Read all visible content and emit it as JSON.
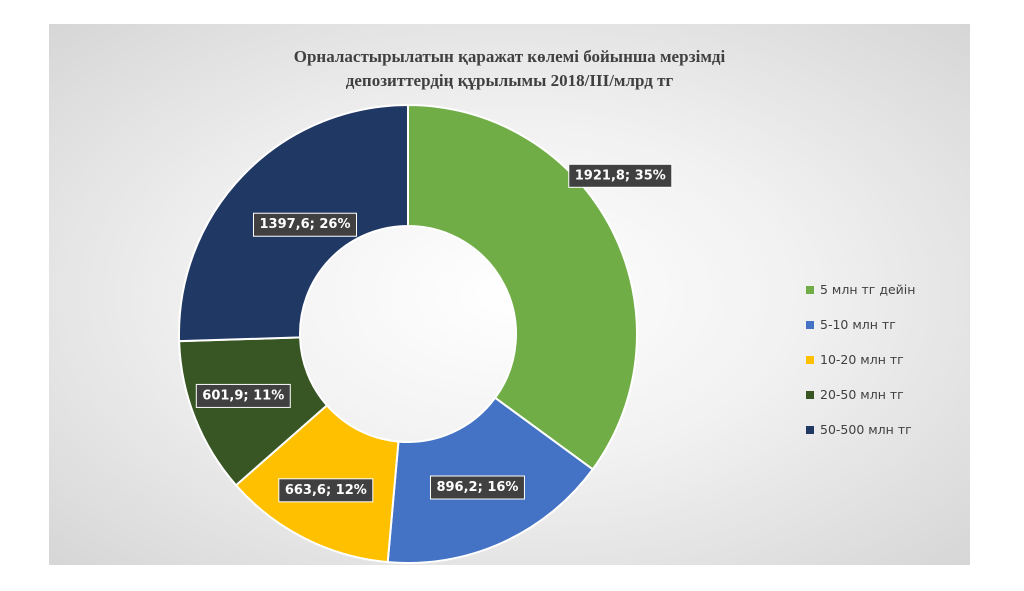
{
  "chart_data": {
    "type": "pie",
    "variant": "doughnut",
    "title": "Орналастырылатын қаражат көлемі бойынша мерзімді депозиттердің құрылымы 2018/III/млрд тг",
    "title_lines": [
      "Орналастырылатын қаражат көлемі бойынша мерзімді",
      "депозиттердің құрылымы 2018/III/млрд тг"
    ],
    "categories": [
      "5 млн тг дейін",
      "5-10 млн тг",
      "10-20 млн тг",
      "20-50 млн тг",
      "50-500 млн тг"
    ],
    "values": [
      1921.8,
      896.2,
      663.6,
      601.9,
      1397.6
    ],
    "percents": [
      35,
      16,
      12,
      11,
      26
    ],
    "data_labels": [
      "1921,8; 35%",
      "896,2; 16%",
      "663,6; 12%",
      "601,9; 11%",
      "1397,6; 26%"
    ],
    "colors": [
      "#70ad47",
      "#4472c4",
      "#ffc000",
      "#375623",
      "#203864"
    ],
    "legend_position": "right"
  }
}
